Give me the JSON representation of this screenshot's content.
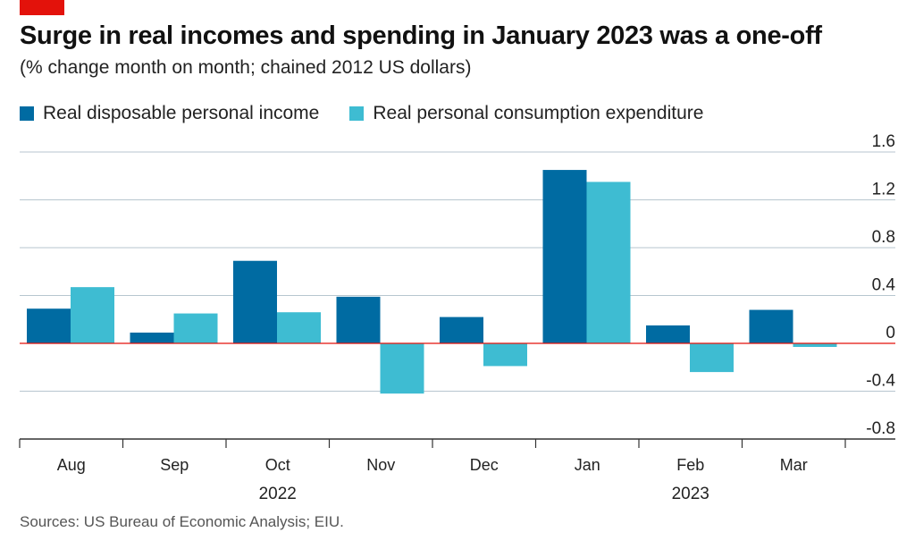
{
  "header": {
    "title": "Surge in real incomes and spending in January 2023 was a one-off",
    "subtitle": "(% change month on month; chained 2012 US dollars)"
  },
  "footer": {
    "source": "Sources: US Bureau of Economic Analysis; EIU."
  },
  "colors": {
    "brand": "#e3120b",
    "income": "#006ba2",
    "consumption": "#3ebcd2",
    "zero_line": "#e3120b",
    "grid": "#b7c6cf",
    "axis": "#333333"
  },
  "chart_data": {
    "type": "bar",
    "categories": [
      "Aug",
      "Sep",
      "Oct",
      "Nov",
      "Dec",
      "Jan",
      "Feb",
      "Mar"
    ],
    "year_groups": [
      {
        "label": "2022",
        "categories": [
          "Aug",
          "Sep",
          "Oct",
          "Nov",
          "Dec"
        ]
      },
      {
        "label": "2023",
        "categories": [
          "Jan",
          "Feb",
          "Mar"
        ]
      }
    ],
    "series": [
      {
        "name": "Real disposable personal income",
        "color": "#006ba2",
        "values": [
          0.29,
          0.09,
          0.69,
          0.39,
          0.22,
          1.45,
          0.15,
          0.28
        ]
      },
      {
        "name": "Real personal consumption expenditure",
        "color": "#3ebcd2",
        "values": [
          0.47,
          0.25,
          0.26,
          -0.42,
          -0.19,
          1.35,
          -0.24,
          -0.03
        ]
      }
    ],
    "ylim": [
      -0.8,
      1.6
    ],
    "yticks": [
      {
        "value": 1.6,
        "label": "1.6"
      },
      {
        "value": 1.2,
        "label": "1.2"
      },
      {
        "value": 0.8,
        "label": "0.8"
      },
      {
        "value": 0.4,
        "label": "0.4"
      },
      {
        "value": 0,
        "label": "0"
      },
      {
        "value": -0.4,
        "label": "-0.4"
      },
      {
        "value": -0.8,
        "label": "-0.8"
      }
    ],
    "y_axis_side": "right",
    "grid": true,
    "legend_position": "top-left"
  }
}
